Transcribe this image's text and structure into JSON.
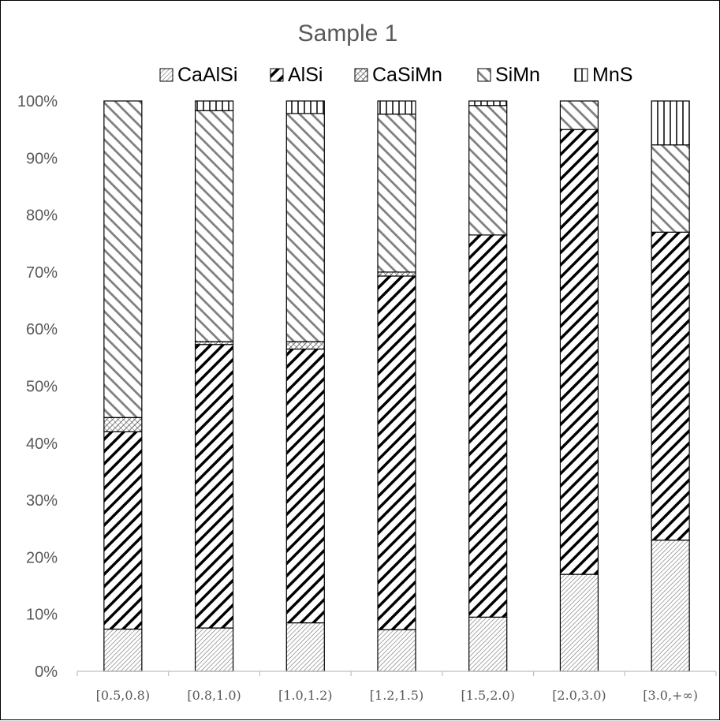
{
  "chart_data": {
    "type": "bar",
    "stacked": true,
    "percent": true,
    "title": "Sample 1",
    "categories": [
      "[0.5,0.8)",
      "[0.8,1.0)",
      "[1.0,1.2)",
      "[1.2,1.5)",
      "[1.5,2.0)",
      "[2.0,3.0)",
      "[3.0,+∞)"
    ],
    "series": [
      {
        "name": "CaAlSi",
        "pattern": "fine-hatch",
        "values": [
          7.4,
          7.6,
          8.5,
          7.3,
          9.5,
          17.0,
          23.0
        ]
      },
      {
        "name": "AlSi",
        "pattern": "bold-diagonal",
        "values": [
          34.6,
          49.7,
          48.0,
          62.0,
          67.0,
          78.0,
          54.0
        ]
      },
      {
        "name": "CaSiMn",
        "pattern": "cross-hatch",
        "values": [
          2.5,
          0.5,
          1.3,
          0.7,
          0.0,
          0.0,
          0.0
        ]
      },
      {
        "name": "SiMn",
        "pattern": "wide-diagonal",
        "values": [
          55.5,
          40.5,
          40.0,
          27.7,
          22.7,
          5.0,
          15.3
        ]
      },
      {
        "name": "MnS",
        "pattern": "vertical",
        "values": [
          0.0,
          1.7,
          2.2,
          2.3,
          0.8,
          0.0,
          7.7
        ]
      }
    ],
    "ylim": [
      0,
      100
    ],
    "yticks": [
      "0%",
      "10%",
      "20%",
      "30%",
      "40%",
      "50%",
      "60%",
      "70%",
      "80%",
      "90%",
      "100%"
    ],
    "xlabel": "",
    "ylabel": "",
    "legend_position": "top",
    "grid": false
  }
}
